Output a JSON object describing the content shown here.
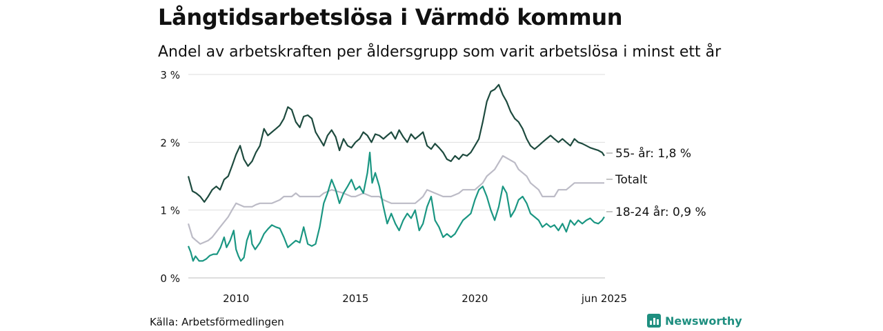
{
  "title": "Långtidsarbetslösa i Värmdö kommun",
  "subtitle": "Andel av arbetskraften per åldersgrupp som varit arbetslösa i minst ett år",
  "source": "Källa: Arbetsförmedlingen",
  "brand": {
    "name": "Newsworthy",
    "color": "#1f8f80",
    "icon": "bar-chart-logo-icon"
  },
  "chart_data": {
    "type": "line",
    "x_unit": "year",
    "xlim": [
      2008.0,
      2025.45
    ],
    "ylim": [
      0,
      3
    ],
    "y_ticks": [
      "0 %",
      "1 %",
      "2 %",
      "3 %"
    ],
    "y_tick_values": [
      0,
      1,
      2,
      3
    ],
    "x_ticks": [
      "2010",
      "2015",
      "2020",
      "jun 2025"
    ],
    "x_tick_values": [
      2010,
      2015,
      2020,
      2025.42
    ],
    "grid": true,
    "legend": "end-labels",
    "series": [
      {
        "name": "55- år",
        "end_label": "55- år: 1,8 %",
        "color": "#1d4a3e",
        "points": [
          [
            2008.0,
            1.5
          ],
          [
            2008.17,
            1.28
          ],
          [
            2008.33,
            1.25
          ],
          [
            2008.5,
            1.2
          ],
          [
            2008.67,
            1.12
          ],
          [
            2008.83,
            1.2
          ],
          [
            2009.0,
            1.3
          ],
          [
            2009.17,
            1.35
          ],
          [
            2009.33,
            1.3
          ],
          [
            2009.5,
            1.45
          ],
          [
            2009.67,
            1.5
          ],
          [
            2009.83,
            1.65
          ],
          [
            2010.0,
            1.82
          ],
          [
            2010.17,
            1.95
          ],
          [
            2010.33,
            1.75
          ],
          [
            2010.5,
            1.65
          ],
          [
            2010.67,
            1.72
          ],
          [
            2010.83,
            1.85
          ],
          [
            2011.0,
            1.95
          ],
          [
            2011.17,
            2.2
          ],
          [
            2011.33,
            2.1
          ],
          [
            2011.5,
            2.15
          ],
          [
            2011.67,
            2.2
          ],
          [
            2011.83,
            2.25
          ],
          [
            2012.0,
            2.35
          ],
          [
            2012.17,
            2.52
          ],
          [
            2012.33,
            2.48
          ],
          [
            2012.5,
            2.3
          ],
          [
            2012.67,
            2.22
          ],
          [
            2012.83,
            2.38
          ],
          [
            2013.0,
            2.4
          ],
          [
            2013.17,
            2.35
          ],
          [
            2013.33,
            2.15
          ],
          [
            2013.5,
            2.05
          ],
          [
            2013.67,
            1.95
          ],
          [
            2013.83,
            2.1
          ],
          [
            2014.0,
            2.18
          ],
          [
            2014.17,
            2.08
          ],
          [
            2014.33,
            1.88
          ],
          [
            2014.5,
            2.05
          ],
          [
            2014.67,
            1.95
          ],
          [
            2014.83,
            1.92
          ],
          [
            2015.0,
            2.0
          ],
          [
            2015.17,
            2.05
          ],
          [
            2015.33,
            2.15
          ],
          [
            2015.5,
            2.1
          ],
          [
            2015.67,
            2.0
          ],
          [
            2015.83,
            2.12
          ],
          [
            2016.0,
            2.1
          ],
          [
            2016.17,
            2.05
          ],
          [
            2016.33,
            2.1
          ],
          [
            2016.5,
            2.15
          ],
          [
            2016.67,
            2.05
          ],
          [
            2016.83,
            2.18
          ],
          [
            2017.0,
            2.08
          ],
          [
            2017.17,
            2.0
          ],
          [
            2017.33,
            2.12
          ],
          [
            2017.5,
            2.05
          ],
          [
            2017.67,
            2.1
          ],
          [
            2017.83,
            2.15
          ],
          [
            2018.0,
            1.95
          ],
          [
            2018.17,
            1.9
          ],
          [
            2018.33,
            1.98
          ],
          [
            2018.5,
            1.92
          ],
          [
            2018.67,
            1.85
          ],
          [
            2018.83,
            1.75
          ],
          [
            2019.0,
            1.72
          ],
          [
            2019.17,
            1.8
          ],
          [
            2019.33,
            1.75
          ],
          [
            2019.5,
            1.82
          ],
          [
            2019.67,
            1.8
          ],
          [
            2019.83,
            1.85
          ],
          [
            2020.0,
            1.95
          ],
          [
            2020.17,
            2.05
          ],
          [
            2020.33,
            2.3
          ],
          [
            2020.5,
            2.6
          ],
          [
            2020.67,
            2.75
          ],
          [
            2020.83,
            2.78
          ],
          [
            2021.0,
            2.85
          ],
          [
            2021.17,
            2.7
          ],
          [
            2021.33,
            2.6
          ],
          [
            2021.5,
            2.45
          ],
          [
            2021.67,
            2.35
          ],
          [
            2021.83,
            2.3
          ],
          [
            2022.0,
            2.2
          ],
          [
            2022.17,
            2.05
          ],
          [
            2022.33,
            1.95
          ],
          [
            2022.5,
            1.9
          ],
          [
            2022.67,
            1.95
          ],
          [
            2022.83,
            2.0
          ],
          [
            2023.0,
            2.05
          ],
          [
            2023.17,
            2.1
          ],
          [
            2023.33,
            2.05
          ],
          [
            2023.5,
            2.0
          ],
          [
            2023.67,
            2.05
          ],
          [
            2023.83,
            2.0
          ],
          [
            2024.0,
            1.95
          ],
          [
            2024.17,
            2.05
          ],
          [
            2024.33,
            2.0
          ],
          [
            2024.5,
            1.98
          ],
          [
            2024.67,
            1.95
          ],
          [
            2024.83,
            1.92
          ],
          [
            2025.0,
            1.9
          ],
          [
            2025.17,
            1.88
          ],
          [
            2025.33,
            1.85
          ],
          [
            2025.42,
            1.8
          ]
        ]
      },
      {
        "name": "Totalt",
        "end_label": "Totalt",
        "color": "#bcbbc6",
        "points": [
          [
            2008.0,
            0.8
          ],
          [
            2008.17,
            0.6
          ],
          [
            2008.33,
            0.55
          ],
          [
            2008.5,
            0.5
          ],
          [
            2008.83,
            0.55
          ],
          [
            2009.0,
            0.6
          ],
          [
            2009.33,
            0.75
          ],
          [
            2009.67,
            0.9
          ],
          [
            2009.83,
            1.0
          ],
          [
            2010.0,
            1.1
          ],
          [
            2010.33,
            1.05
          ],
          [
            2010.67,
            1.05
          ],
          [
            2010.83,
            1.08
          ],
          [
            2011.0,
            1.1
          ],
          [
            2011.5,
            1.1
          ],
          [
            2011.83,
            1.15
          ],
          [
            2012.0,
            1.2
          ],
          [
            2012.33,
            1.2
          ],
          [
            2012.5,
            1.25
          ],
          [
            2012.67,
            1.2
          ],
          [
            2013.0,
            1.2
          ],
          [
            2013.5,
            1.2
          ],
          [
            2013.67,
            1.25
          ],
          [
            2014.0,
            1.3
          ],
          [
            2014.5,
            1.25
          ],
          [
            2014.83,
            1.2
          ],
          [
            2015.0,
            1.2
          ],
          [
            2015.33,
            1.25
          ],
          [
            2015.67,
            1.2
          ],
          [
            2016.0,
            1.2
          ],
          [
            2016.17,
            1.15
          ],
          [
            2016.5,
            1.1
          ],
          [
            2017.0,
            1.1
          ],
          [
            2017.5,
            1.1
          ],
          [
            2017.67,
            1.15
          ],
          [
            2017.83,
            1.2
          ],
          [
            2018.0,
            1.3
          ],
          [
            2018.33,
            1.25
          ],
          [
            2018.67,
            1.2
          ],
          [
            2019.0,
            1.2
          ],
          [
            2019.33,
            1.25
          ],
          [
            2019.5,
            1.3
          ],
          [
            2020.0,
            1.3
          ],
          [
            2020.33,
            1.4
          ],
          [
            2020.5,
            1.5
          ],
          [
            2020.83,
            1.6
          ],
          [
            2021.0,
            1.7
          ],
          [
            2021.17,
            1.8
          ],
          [
            2021.67,
            1.7
          ],
          [
            2021.83,
            1.6
          ],
          [
            2022.17,
            1.5
          ],
          [
            2022.33,
            1.4
          ],
          [
            2022.67,
            1.3
          ],
          [
            2022.83,
            1.2
          ],
          [
            2023.33,
            1.2
          ],
          [
            2023.5,
            1.3
          ],
          [
            2023.83,
            1.3
          ],
          [
            2024.0,
            1.35
          ],
          [
            2024.17,
            1.4
          ],
          [
            2025.42,
            1.4
          ]
        ]
      },
      {
        "name": "18-24 år",
        "end_label": "18-24 år: 0,9 %",
        "color": "#1a9682",
        "points": [
          [
            2008.0,
            0.47
          ],
          [
            2008.1,
            0.38
          ],
          [
            2008.2,
            0.25
          ],
          [
            2008.3,
            0.32
          ],
          [
            2008.45,
            0.25
          ],
          [
            2008.6,
            0.25
          ],
          [
            2008.75,
            0.28
          ],
          [
            2008.9,
            0.33
          ],
          [
            2009.05,
            0.35
          ],
          [
            2009.2,
            0.35
          ],
          [
            2009.35,
            0.45
          ],
          [
            2009.5,
            0.6
          ],
          [
            2009.6,
            0.45
          ],
          [
            2009.75,
            0.55
          ],
          [
            2009.9,
            0.7
          ],
          [
            2010.0,
            0.42
          ],
          [
            2010.1,
            0.32
          ],
          [
            2010.2,
            0.25
          ],
          [
            2010.33,
            0.3
          ],
          [
            2010.45,
            0.55
          ],
          [
            2010.6,
            0.7
          ],
          [
            2010.67,
            0.5
          ],
          [
            2010.8,
            0.42
          ],
          [
            2011.0,
            0.52
          ],
          [
            2011.17,
            0.65
          ],
          [
            2011.33,
            0.72
          ],
          [
            2011.5,
            0.78
          ],
          [
            2011.67,
            0.75
          ],
          [
            2011.83,
            0.73
          ],
          [
            2012.0,
            0.6
          ],
          [
            2012.17,
            0.45
          ],
          [
            2012.33,
            0.5
          ],
          [
            2012.5,
            0.55
          ],
          [
            2012.67,
            0.52
          ],
          [
            2012.83,
            0.75
          ],
          [
            2013.0,
            0.5
          ],
          [
            2013.17,
            0.47
          ],
          [
            2013.33,
            0.5
          ],
          [
            2013.5,
            0.75
          ],
          [
            2013.67,
            1.1
          ],
          [
            2013.83,
            1.25
          ],
          [
            2014.0,
            1.45
          ],
          [
            2014.17,
            1.3
          ],
          [
            2014.33,
            1.1
          ],
          [
            2014.5,
            1.25
          ],
          [
            2014.67,
            1.35
          ],
          [
            2014.83,
            1.45
          ],
          [
            2015.0,
            1.3
          ],
          [
            2015.17,
            1.35
          ],
          [
            2015.33,
            1.25
          ],
          [
            2015.5,
            1.55
          ],
          [
            2015.6,
            1.85
          ],
          [
            2015.7,
            1.4
          ],
          [
            2015.83,
            1.55
          ],
          [
            2016.0,
            1.35
          ],
          [
            2016.17,
            1.05
          ],
          [
            2016.33,
            0.8
          ],
          [
            2016.5,
            0.95
          ],
          [
            2016.67,
            0.8
          ],
          [
            2016.83,
            0.7
          ],
          [
            2017.0,
            0.85
          ],
          [
            2017.17,
            0.95
          ],
          [
            2017.33,
            0.88
          ],
          [
            2017.5,
            1.0
          ],
          [
            2017.67,
            0.7
          ],
          [
            2017.83,
            0.8
          ],
          [
            2018.0,
            1.05
          ],
          [
            2018.17,
            1.2
          ],
          [
            2018.33,
            0.85
          ],
          [
            2018.5,
            0.75
          ],
          [
            2018.67,
            0.6
          ],
          [
            2018.83,
            0.65
          ],
          [
            2019.0,
            0.6
          ],
          [
            2019.17,
            0.65
          ],
          [
            2019.33,
            0.75
          ],
          [
            2019.5,
            0.85
          ],
          [
            2019.67,
            0.9
          ],
          [
            2019.83,
            0.95
          ],
          [
            2020.0,
            1.15
          ],
          [
            2020.17,
            1.3
          ],
          [
            2020.33,
            1.35
          ],
          [
            2020.5,
            1.2
          ],
          [
            2020.67,
            1.0
          ],
          [
            2020.83,
            0.85
          ],
          [
            2021.0,
            1.05
          ],
          [
            2021.17,
            1.35
          ],
          [
            2021.33,
            1.25
          ],
          [
            2021.5,
            0.9
          ],
          [
            2021.67,
            1.0
          ],
          [
            2021.83,
            1.15
          ],
          [
            2022.0,
            1.2
          ],
          [
            2022.17,
            1.1
          ],
          [
            2022.33,
            0.95
          ],
          [
            2022.5,
            0.9
          ],
          [
            2022.67,
            0.85
          ],
          [
            2022.83,
            0.75
          ],
          [
            2023.0,
            0.8
          ],
          [
            2023.17,
            0.75
          ],
          [
            2023.33,
            0.78
          ],
          [
            2023.5,
            0.7
          ],
          [
            2023.67,
            0.8
          ],
          [
            2023.83,
            0.68
          ],
          [
            2024.0,
            0.85
          ],
          [
            2024.17,
            0.78
          ],
          [
            2024.33,
            0.85
          ],
          [
            2024.5,
            0.8
          ],
          [
            2024.67,
            0.85
          ],
          [
            2024.83,
            0.88
          ],
          [
            2025.0,
            0.82
          ],
          [
            2025.17,
            0.8
          ],
          [
            2025.33,
            0.85
          ],
          [
            2025.42,
            0.9
          ]
        ]
      }
    ]
  }
}
